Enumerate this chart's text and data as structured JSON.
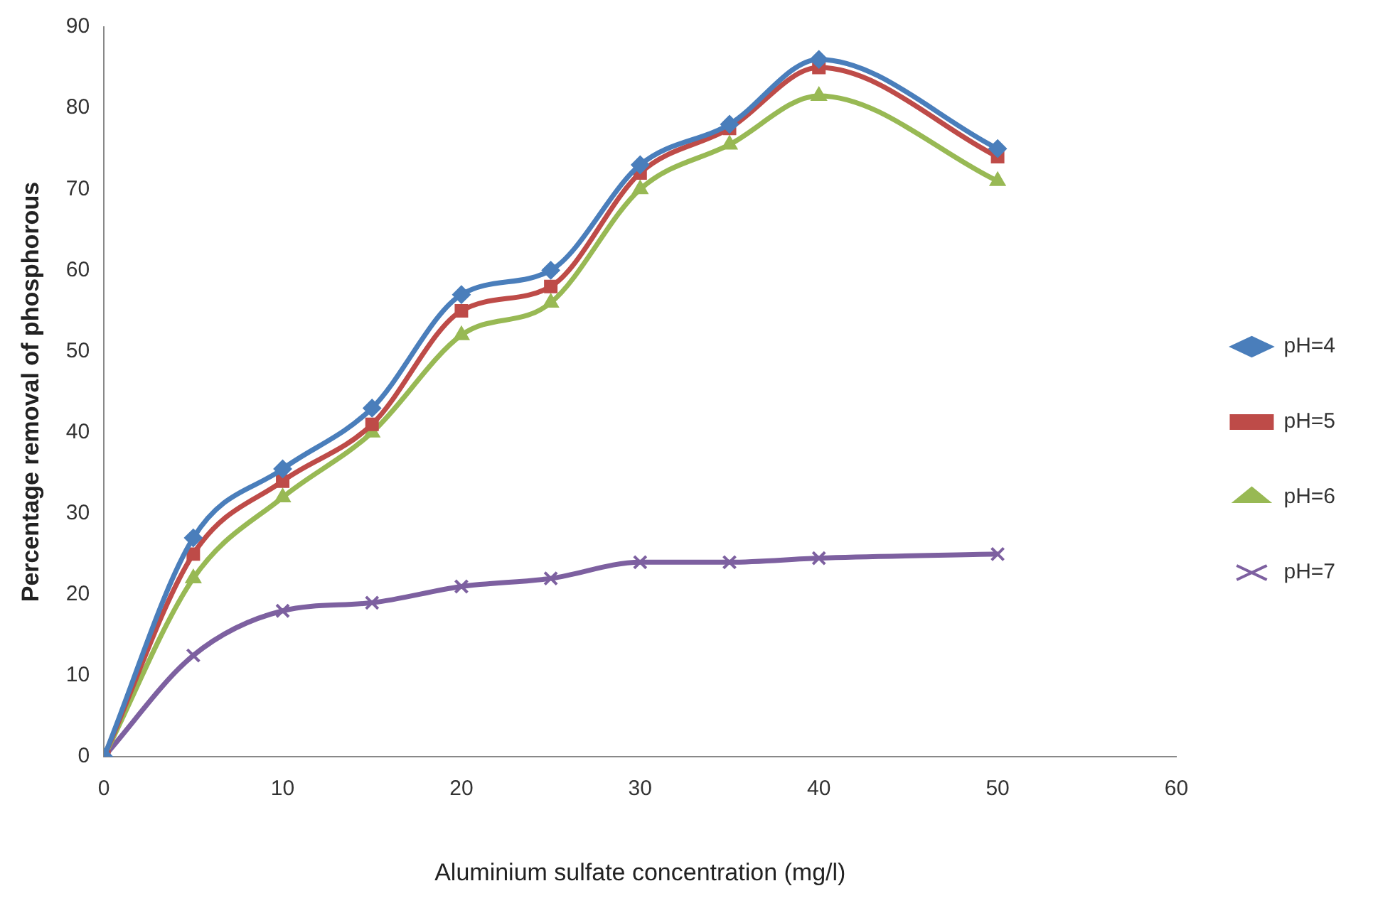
{
  "chart_data": {
    "type": "line",
    "xlabel": "Aluminium sulfate concentration (mg/l)",
    "ylabel": "Percentage removal of phosphorous",
    "x": [
      0,
      5,
      10,
      15,
      20,
      25,
      30,
      35,
      40,
      50
    ],
    "series": [
      {
        "name": "pH=4",
        "color": "#4a7ebb",
        "marker": "diamond",
        "values": [
          0,
          27,
          35.5,
          43,
          57,
          60,
          73,
          78,
          86,
          75
        ]
      },
      {
        "name": "pH=5",
        "color": "#be4b48",
        "marker": "square",
        "values": [
          0,
          25,
          34,
          41,
          55,
          58,
          72,
          77.5,
          85,
          74
        ]
      },
      {
        "name": "pH=6",
        "color": "#98b954",
        "marker": "triangle",
        "values": [
          0,
          22,
          32,
          40,
          52,
          56,
          70,
          75.5,
          81.5,
          71
        ]
      },
      {
        "name": "pH=7",
        "color": "#7d60a0",
        "marker": "cross",
        "values": [
          0,
          12.5,
          18,
          19,
          21,
          22,
          24,
          24,
          24.5,
          25
        ]
      }
    ],
    "xlim": [
      0,
      60
    ],
    "xticks": [
      0,
      10,
      20,
      30,
      40,
      50,
      60
    ],
    "ylim": [
      0,
      90
    ],
    "yticks": [
      0,
      10,
      20,
      30,
      40,
      50,
      60,
      70,
      80,
      90
    ],
    "grid": false,
    "legend": "right"
  }
}
